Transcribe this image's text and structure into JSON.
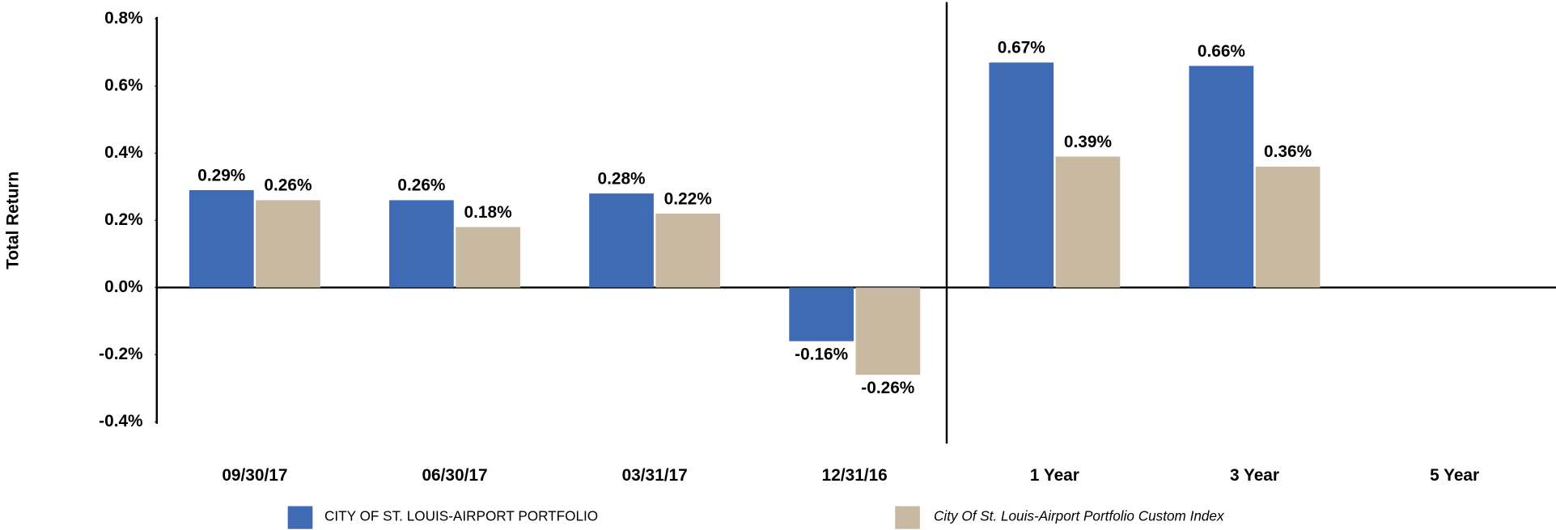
{
  "chart_data": {
    "type": "bar",
    "y_label": "Total Return",
    "categories": [
      "09/30/17",
      "06/30/17",
      "03/31/17",
      "12/31/16",
      "1 Year",
      "3 Year",
      "5 Year"
    ],
    "series": [
      {
        "name": "CITY OF ST. LOUIS-AIRPORT PORTFOLIO",
        "color": "#3f6bb5",
        "values": [
          0.29,
          0.26,
          0.28,
          -0.16,
          0.67,
          0.66,
          null
        ],
        "value_labels": [
          "0.29%",
          "0.26%",
          "0.28%",
          "-0.16%",
          "0.67%",
          "0.66%",
          null
        ]
      },
      {
        "name": "City Of St. Louis-Airport Portfolio Custom Index",
        "color": "#c8b9a3",
        "values": [
          0.26,
          0.18,
          0.22,
          -0.26,
          0.39,
          0.36,
          null
        ],
        "value_labels": [
          "0.26%",
          "0.18%",
          "0.22%",
          "-0.26%",
          "0.39%",
          "0.36%",
          null
        ]
      }
    ],
    "ylim": [
      -0.4,
      0.8
    ],
    "yticks": [
      {
        "value": -0.4,
        "label": "-0.4%"
      },
      {
        "value": -0.2,
        "label": "-0.2%"
      },
      {
        "value": 0,
        "label": "0.0%"
      },
      {
        "value": 0.2,
        "label": "0.2%"
      },
      {
        "value": 0.4,
        "label": "0.4%"
      },
      {
        "value": 0.6,
        "label": "0.6%"
      },
      {
        "value": 0.8,
        "label": "0.8%"
      }
    ],
    "grid": false,
    "legend": "bottom"
  }
}
